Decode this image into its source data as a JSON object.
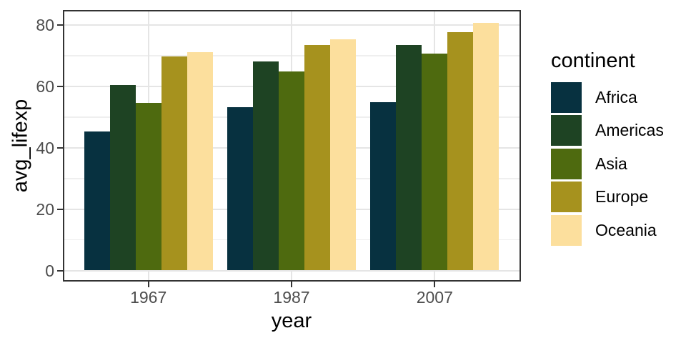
{
  "chart_data": {
    "type": "bar",
    "bar_layout": "dodge",
    "title": "",
    "xlabel": "year",
    "ylabel": "avg_lifexp",
    "categories": [
      "1967",
      "1987",
      "2007"
    ],
    "series": [
      {
        "name": "Africa",
        "color": "#073140",
        "values": [
          45.33,
          53.34,
          54.81
        ]
      },
      {
        "name": "Americas",
        "color": "#1e4323",
        "values": [
          60.41,
          68.09,
          73.61
        ]
      },
      {
        "name": "Asia",
        "color": "#4e6a0f",
        "values": [
          54.66,
          64.85,
          70.73
        ]
      },
      {
        "name": "Europe",
        "color": "#a6921e",
        "values": [
          69.74,
          73.64,
          77.65
        ]
      },
      {
        "name": "Oceania",
        "color": "#fcdf9d",
        "values": [
          71.31,
          75.32,
          80.72
        ]
      }
    ],
    "x_axis": {
      "tick_labels": [
        "1967",
        "1987",
        "2007"
      ]
    },
    "y_axis": {
      "tick_labels": [
        "0",
        "20",
        "40",
        "60",
        "80"
      ],
      "major_ticks": [
        0,
        20,
        40,
        60,
        80
      ],
      "minor_gridlines": [
        10,
        30,
        50,
        70
      ],
      "range": [
        -4,
        84.5
      ]
    },
    "legend": {
      "title": "continent",
      "position": "right"
    },
    "grid": true,
    "colors": {
      "background": "#ffffff",
      "panel_border": "#333333",
      "grid_major": "#e5e5e5",
      "grid_minor": "#efefef",
      "axis_tick": "#333333",
      "tick_label": "#4d4d4d",
      "axis_title": "#000000"
    }
  }
}
